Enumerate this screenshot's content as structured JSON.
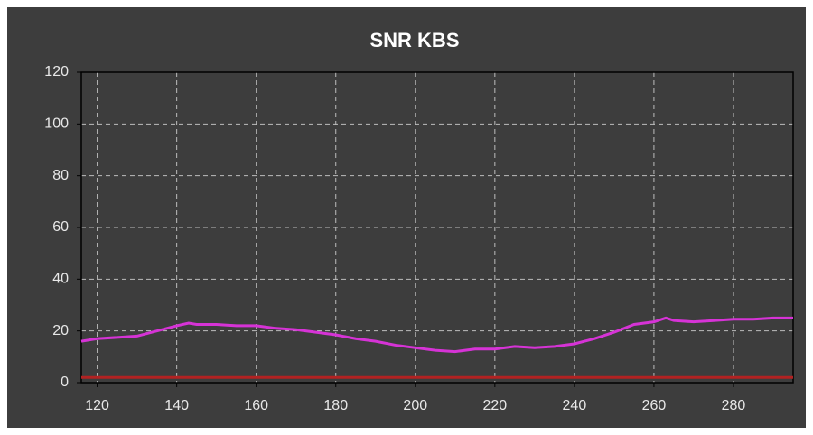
{
  "chart_data": {
    "type": "line",
    "title": "SNR KBS",
    "series": [
      {
        "color": "#d633d6",
        "x": [
          116,
          120,
          125,
          130,
          135,
          140,
          143,
          145,
          150,
          155,
          160,
          165,
          170,
          175,
          180,
          185,
          190,
          195,
          200,
          205,
          210,
          215,
          220,
          225,
          230,
          235,
          240,
          245,
          250,
          255,
          260,
          263,
          265,
          270,
          275,
          280,
          285,
          290,
          295
        ],
        "values": [
          16,
          17,
          17.5,
          18,
          20,
          22,
          23,
          22.5,
          22.5,
          22,
          22,
          21,
          20.5,
          19.5,
          18.5,
          17,
          16,
          14.5,
          13.5,
          12.5,
          12,
          13,
          13,
          14,
          13.5,
          14,
          15,
          17,
          19.5,
          22.5,
          23.5,
          25,
          24,
          23.5,
          24,
          24.5,
          24.5,
          25,
          25
        ]
      },
      {
        "color": "#b22222",
        "x": [
          116,
          295
        ],
        "values": [
          2,
          2
        ]
      }
    ],
    "xlim": [
      116,
      295
    ],
    "xticks": [
      120,
      140,
      160,
      180,
      200,
      220,
      240,
      260,
      280
    ],
    "ylim": [
      0,
      120
    ],
    "yticks": [
      0,
      20,
      40,
      60,
      80,
      100,
      120
    ],
    "grid": true
  }
}
